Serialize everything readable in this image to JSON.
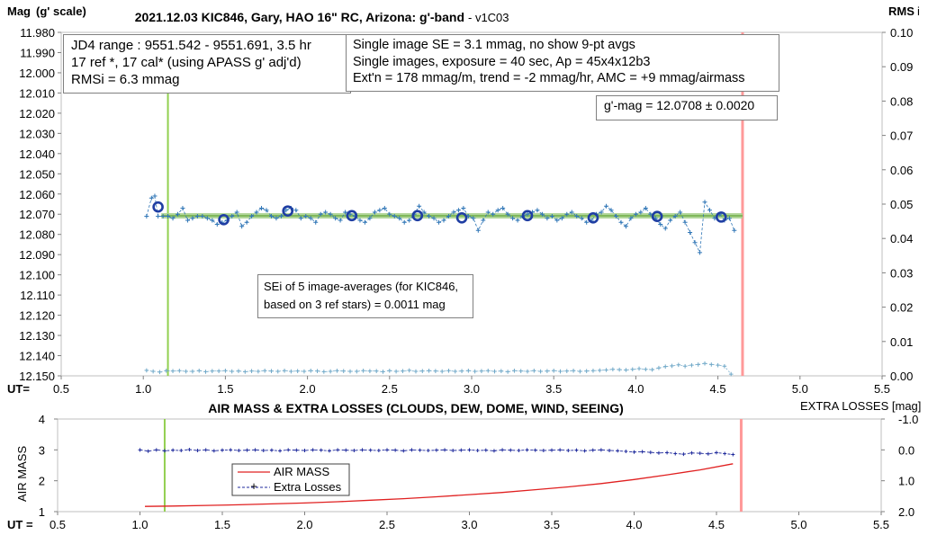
{
  "chart_data": [
    {
      "type": "scatter",
      "title": "2021.12.03 KIC846, Gary, HAO 16\" RC, Arizona: g'-band",
      "title_suffix": "- v1C03",
      "ylabel": "Mag",
      "ylabel_sub": "(g' scale)",
      "y2label": "RMS",
      "y2label_sub": "i",
      "xlabel": "UT=",
      "xlim": [
        0.5,
        5.5
      ],
      "x_ticks": [
        "0.5",
        "1.0",
        "1.5",
        "2.0",
        "2.5",
        "3.0",
        "3.5",
        "4.0",
        "4.5",
        "5.0",
        "5.5"
      ],
      "ylim": [
        11.98,
        12.15
      ],
      "y_reversed": true,
      "y_ticks": [
        "11.980",
        "11.990",
        "12.000",
        "12.010",
        "12.020",
        "12.030",
        "12.040",
        "12.050",
        "12.060",
        "12.070",
        "12.080",
        "12.090",
        "12.100",
        "12.110",
        "12.120",
        "12.130",
        "12.140",
        "12.150"
      ],
      "y2lim": [
        0.0,
        0.1
      ],
      "y2_ticks": [
        "0.00",
        "0.01",
        "0.02",
        "0.03",
        "0.04",
        "0.05",
        "0.06",
        "0.07",
        "0.08",
        "0.09",
        "0.10"
      ],
      "grid": false,
      "start_marker_x": 1.15,
      "end_marker_x": 4.65,
      "fit_level": 12.0708,
      "fit_x_range": [
        1.0,
        4.65
      ],
      "single_images": {
        "x": [
          1.02,
          1.05,
          1.07,
          1.09,
          1.12,
          1.15,
          1.18,
          1.21,
          1.24,
          1.27,
          1.3,
          1.33,
          1.36,
          1.39,
          1.42,
          1.45,
          1.48,
          1.51,
          1.54,
          1.57,
          1.6,
          1.63,
          1.66,
          1.69,
          1.72,
          1.75,
          1.78,
          1.81,
          1.84,
          1.87,
          1.9,
          1.93,
          1.96,
          1.99,
          2.02,
          2.05,
          2.08,
          2.11,
          2.14,
          2.17,
          2.2,
          2.23,
          2.26,
          2.29,
          2.32,
          2.35,
          2.38,
          2.41,
          2.44,
          2.47,
          2.5,
          2.53,
          2.56,
          2.59,
          2.62,
          2.65,
          2.68,
          2.71,
          2.74,
          2.77,
          2.8,
          2.83,
          2.86,
          2.89,
          2.92,
          2.95,
          2.98,
          3.01,
          3.04,
          3.07,
          3.1,
          3.13,
          3.16,
          3.19,
          3.22,
          3.25,
          3.28,
          3.31,
          3.34,
          3.37,
          3.4,
          3.43,
          3.46,
          3.49,
          3.52,
          3.55,
          3.58,
          3.61,
          3.64,
          3.67,
          3.7,
          3.73,
          3.76,
          3.79,
          3.82,
          3.85,
          3.88,
          3.91,
          3.94,
          3.97,
          4.0,
          4.03,
          4.06,
          4.09,
          4.12,
          4.15,
          4.18,
          4.21,
          4.24,
          4.27,
          4.3,
          4.33,
          4.36,
          4.39,
          4.42,
          4.45,
          4.48,
          4.51,
          4.54,
          4.57,
          4.6
        ],
        "y": [
          12.071,
          12.062,
          12.061,
          12.071,
          12.071,
          12.071,
          12.072,
          12.07,
          12.067,
          12.073,
          12.072,
          12.071,
          12.071,
          12.072,
          12.073,
          12.075,
          12.074,
          12.073,
          12.071,
          12.069,
          12.076,
          12.074,
          12.071,
          12.069,
          12.067,
          12.068,
          12.071,
          12.072,
          12.071,
          12.068,
          12.067,
          12.068,
          12.072,
          12.071,
          12.072,
          12.074,
          12.07,
          12.069,
          12.07,
          12.072,
          12.073,
          12.069,
          12.07,
          12.071,
          12.073,
          12.074,
          12.072,
          12.069,
          12.068,
          12.067,
          12.07,
          12.071,
          12.072,
          12.074,
          12.073,
          12.07,
          12.066,
          12.069,
          12.071,
          12.072,
          12.074,
          12.073,
          12.071,
          12.069,
          12.068,
          12.067,
          12.071,
          12.072,
          12.078,
          12.073,
          12.069,
          12.07,
          12.068,
          12.067,
          12.07,
          12.072,
          12.073,
          12.071,
          12.07,
          12.069,
          12.068,
          12.07,
          12.072,
          12.071,
          12.073,
          12.072,
          12.07,
          12.069,
          12.071,
          12.072,
          12.074,
          12.073,
          12.07,
          12.069,
          12.066,
          12.068,
          12.071,
          12.074,
          12.076,
          12.072,
          12.07,
          12.069,
          12.067,
          12.07,
          12.072,
          12.075,
          12.077,
          12.073,
          12.071,
          12.069,
          12.074,
          12.079,
          12.084,
          12.089,
          12.064,
          12.068,
          12.072,
          12.07,
          12.073,
          12.072,
          12.078
        ]
      },
      "image_averages": {
        "x": [
          1.09,
          1.49,
          1.88,
          2.27,
          2.67,
          2.94,
          3.34,
          3.74,
          4.13,
          4.52
        ],
        "y": [
          12.0664,
          12.0727,
          12.0684,
          12.0707,
          12.0707,
          12.0718,
          12.0707,
          12.0718,
          12.0711,
          12.0714
        ]
      },
      "rms": {
        "x": [
          1.02,
          1.06,
          1.1,
          1.14,
          1.18,
          1.22,
          1.26,
          1.3,
          1.34,
          1.38,
          1.42,
          1.46,
          1.5,
          1.54,
          1.58,
          1.62,
          1.66,
          1.7,
          1.74,
          1.78,
          1.82,
          1.86,
          1.9,
          1.94,
          1.98,
          2.02,
          2.06,
          2.1,
          2.14,
          2.18,
          2.22,
          2.26,
          2.3,
          2.34,
          2.38,
          2.42,
          2.46,
          2.5,
          2.54,
          2.58,
          2.62,
          2.66,
          2.7,
          2.74,
          2.78,
          2.82,
          2.86,
          2.9,
          2.94,
          2.98,
          3.02,
          3.06,
          3.1,
          3.14,
          3.18,
          3.22,
          3.26,
          3.3,
          3.34,
          3.38,
          3.42,
          3.46,
          3.5,
          3.54,
          3.58,
          3.62,
          3.66,
          3.7,
          3.74,
          3.78,
          3.82,
          3.86,
          3.9,
          3.94,
          3.98,
          4.02,
          4.06,
          4.1,
          4.14,
          4.18,
          4.22,
          4.26,
          4.3,
          4.34,
          4.38,
          4.42,
          4.46,
          4.5,
          4.54,
          4.58
        ],
        "y": [
          0.0016,
          0.0013,
          0.0011,
          0.0015,
          0.0014,
          0.0015,
          0.0013,
          0.0013,
          0.0015,
          0.0012,
          0.0014,
          0.0014,
          0.0015,
          0.0013,
          0.0014,
          0.0012,
          0.0014,
          0.0013,
          0.0015,
          0.0014,
          0.0013,
          0.0015,
          0.0013,
          0.0014,
          0.0013,
          0.0015,
          0.0014,
          0.0012,
          0.0013,
          0.0015,
          0.0014,
          0.0013,
          0.0013,
          0.0015,
          0.0014,
          0.0014,
          0.0012,
          0.0015,
          0.0013,
          0.0014,
          0.0016,
          0.0013,
          0.0014,
          0.0015,
          0.0014,
          0.0013,
          0.0015,
          0.0013,
          0.0014,
          0.0015,
          0.0013,
          0.0014,
          0.0015,
          0.0013,
          0.0014,
          0.0012,
          0.0015,
          0.0014,
          0.0013,
          0.0015,
          0.0013,
          0.0014,
          0.0015,
          0.0013,
          0.0014,
          0.0015,
          0.0013,
          0.0014,
          0.0015,
          0.0016,
          0.0017,
          0.0019,
          0.0018,
          0.0017,
          0.0019,
          0.0021,
          0.0019,
          0.0018,
          0.0023,
          0.0027,
          0.0029,
          0.0032,
          0.0028,
          0.0031,
          0.0033,
          0.0036,
          0.0033,
          0.0031,
          0.0028,
          0.0005
        ]
      },
      "annotations": {
        "box1": [
          "JD4 range : 9551.542 - 9551.691,  3.5  hr",
          "17 ref *, 17 cal* (using APASS g' adj'd)",
          "RMSi = 6.3 mmag"
        ],
        "box2": [
          "Single image SE = 3.1 mmag, no show  9-pt avgs",
          "Single images, exposure = 40 sec, Ap = 45x4x12b3",
          "Ext'n = 178 mmag/m, trend = -2 mmag/hr, AMC = +9 mmag/airmass"
        ],
        "box3": [
          "g'-mag = 12.0708 ± 0.0020"
        ],
        "box4": [
          "SEi of 5 image-averages (for KIC846,",
          "based on 3 ref stars) = 0.0011 mag"
        ]
      },
      "colors": {
        "points": "#2e75b6",
        "averages": "#1f3ea3",
        "fit": "#70ad47",
        "fit_fill": "#a9d18e",
        "start": "#92d050",
        "end": "#ff9999"
      }
    },
    {
      "type": "line",
      "title": "AIR MASS & EXTRA LOSSES (CLOUDS, DEW, DOME, WIND, SEEING)",
      "ylabel": "AIR MASS",
      "y2label": "EXTRA LOSSES [mag]",
      "xlabel": "UT =",
      "xlim": [
        0.5,
        5.5
      ],
      "x_ticks": [
        "0.5",
        "1.0",
        "1.5",
        "2.0",
        "2.5",
        "3.0",
        "3.5",
        "4.0",
        "4.5",
        "5.0",
        "5.5"
      ],
      "ylim": [
        1,
        4
      ],
      "y_ticks": [
        "1",
        "2",
        "3",
        "4"
      ],
      "y2lim": [
        2.0,
        -1.0
      ],
      "y2_ticks": [
        "-1.0",
        "0.0",
        "1.0",
        "2.0"
      ],
      "legend": "center",
      "start_marker_x": 1.15,
      "end_marker_x": 4.65,
      "series": [
        {
          "name": "AIR MASS",
          "axis": "left",
          "color": "#e02020",
          "x": [
            1.03,
            1.2,
            1.4,
            1.6,
            1.8,
            2.0,
            2.2,
            2.4,
            2.6,
            2.8,
            3.0,
            3.2,
            3.4,
            3.6,
            3.8,
            4.0,
            4.2,
            4.4,
            4.6
          ],
          "values": [
            1.17,
            1.18,
            1.2,
            1.22,
            1.25,
            1.28,
            1.32,
            1.37,
            1.42,
            1.48,
            1.55,
            1.62,
            1.71,
            1.8,
            1.91,
            2.04,
            2.19,
            2.35,
            2.55
          ]
        },
        {
          "name": "Extra Losses",
          "axis": "right",
          "color": "#1f2a9c",
          "x": [
            1.0,
            1.05,
            1.1,
            1.15,
            1.2,
            1.25,
            1.3,
            1.35,
            1.4,
            1.45,
            1.5,
            1.55,
            1.6,
            1.65,
            1.7,
            1.75,
            1.8,
            1.85,
            1.9,
            1.95,
            2.0,
            2.05,
            2.1,
            2.15,
            2.2,
            2.25,
            2.3,
            2.35,
            2.4,
            2.45,
            2.5,
            2.55,
            2.6,
            2.65,
            2.7,
            2.75,
            2.8,
            2.85,
            2.9,
            2.95,
            3.0,
            3.05,
            3.1,
            3.15,
            3.2,
            3.25,
            3.3,
            3.35,
            3.4,
            3.45,
            3.5,
            3.55,
            3.6,
            3.65,
            3.7,
            3.75,
            3.8,
            3.85,
            3.9,
            3.95,
            4.0,
            4.05,
            4.1,
            4.15,
            4.2,
            4.25,
            4.3,
            4.35,
            4.4,
            4.45,
            4.5,
            4.55,
            4.6
          ],
          "values": [
            0.0,
            0.04,
            0.0,
            0.03,
            0.01,
            0.02,
            -0.01,
            0.02,
            0.0,
            0.03,
            0.01,
            0.0,
            0.02,
            0.01,
            0.0,
            0.02,
            0.01,
            0.03,
            0.0,
            0.01,
            0.02,
            0.0,
            0.01,
            0.03,
            0.0,
            0.01,
            0.02,
            0.0,
            0.01,
            0.02,
            0.0,
            0.01,
            0.03,
            0.0,
            0.01,
            0.02,
            0.01,
            0.0,
            0.02,
            0.01,
            0.0,
            0.02,
            0.01,
            0.03,
            0.0,
            0.01,
            0.02,
            0.0,
            0.01,
            0.02,
            0.01,
            0.0,
            0.02,
            0.01,
            0.03,
            0.01,
            0.0,
            0.02,
            0.03,
            0.05,
            0.07,
            0.06,
            0.08,
            0.1,
            0.09,
            0.12,
            0.14,
            0.1,
            0.11,
            0.13,
            0.09,
            0.12,
            0.15
          ]
        }
      ]
    }
  ]
}
